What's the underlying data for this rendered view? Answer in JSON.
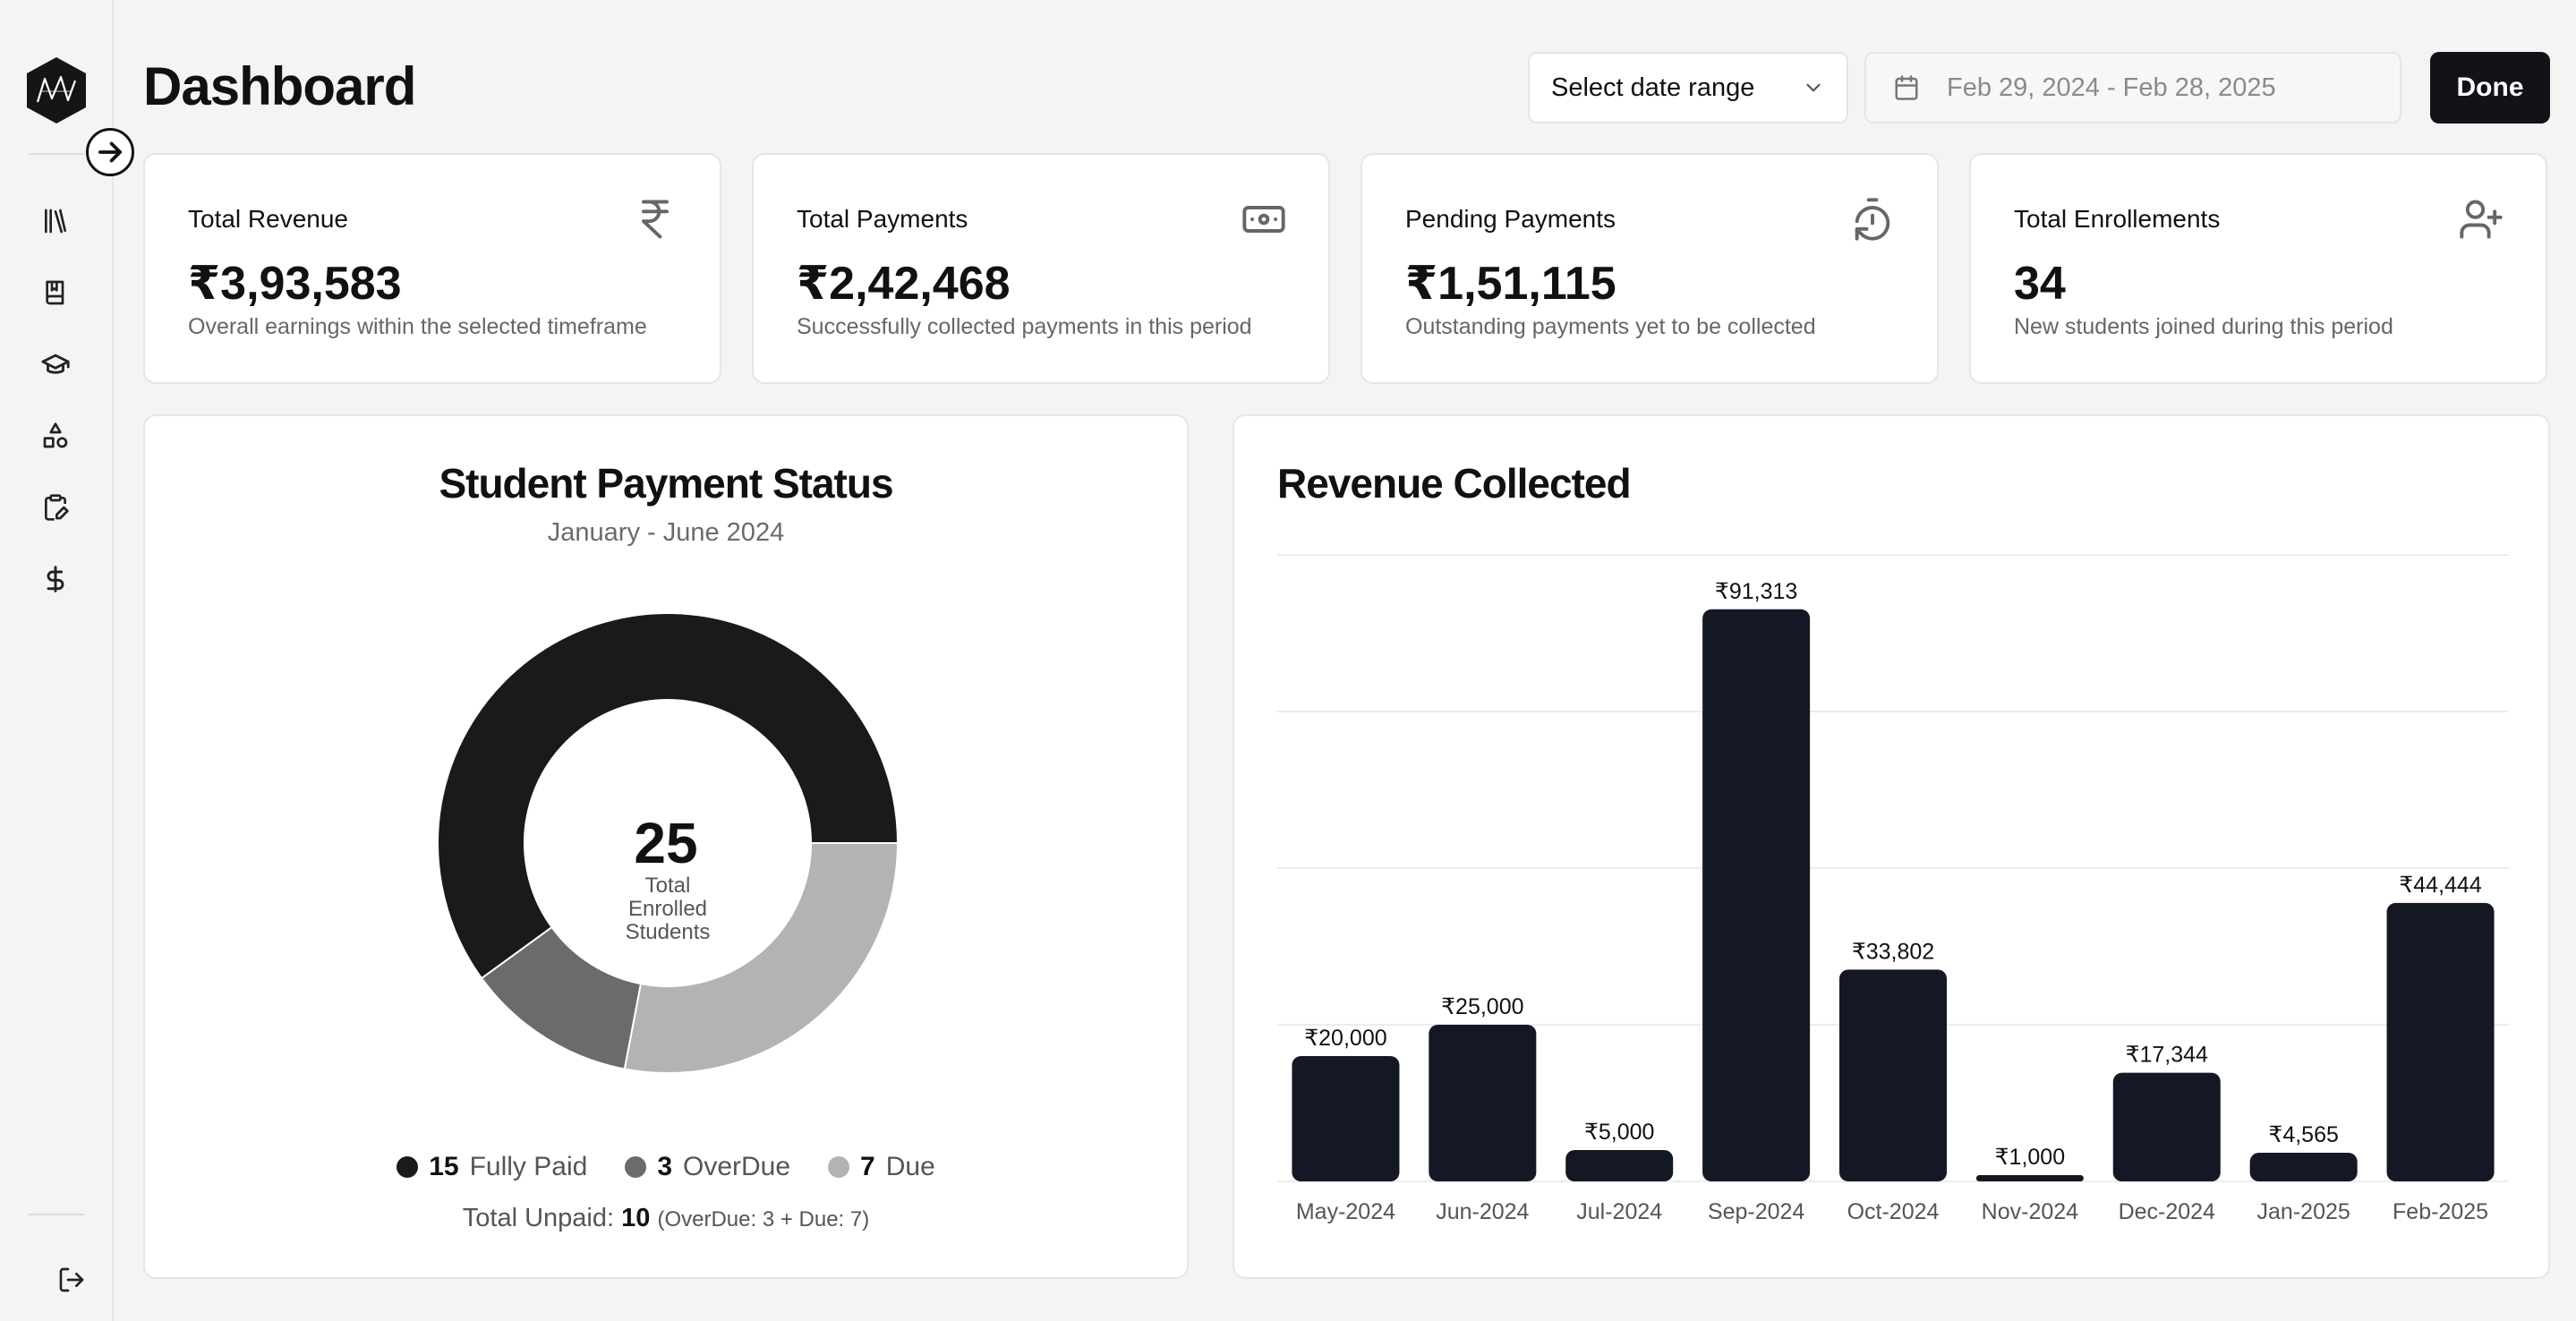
{
  "header": {
    "title": "Dashboard",
    "date_select": "Select date range",
    "date_range": "Feb 29, 2024 - Feb 28, 2025",
    "done": "Done"
  },
  "sidebar": {
    "icons": [
      "library-icon",
      "book-icon",
      "graduation-cap-icon",
      "shapes-icon",
      "clipboard-edit-icon",
      "dollar-icon"
    ],
    "logout_icon": "logout-icon"
  },
  "stats": [
    {
      "title": "Total Revenue",
      "value": "₹3,93,583",
      "sub": "Overall earnings within the selected timeframe",
      "icon": "rupee-icon"
    },
    {
      "title": "Total Payments",
      "value": "₹2,42,468",
      "sub": "Successfully collected payments in this period",
      "icon": "banknote-icon"
    },
    {
      "title": "Pending Payments",
      "value": "₹1,51,115",
      "sub": "Outstanding payments yet to be collected",
      "icon": "timer-reset-icon"
    },
    {
      "title": "Total Enrollements",
      "value": "34",
      "sub": "New students joined during this period",
      "icon": "user-plus-icon"
    }
  ],
  "payment_status": {
    "title": "Student Payment Status",
    "subtitle": "January - June 2024",
    "center_value": "25",
    "center_label": "Total Enrolled Students",
    "legend": [
      {
        "count": "15",
        "label": "Fully Paid",
        "color": "#1a1a1a"
      },
      {
        "count": "3",
        "label": "OverDue",
        "color": "#6b6b6b"
      },
      {
        "count": "7",
        "label": "Due",
        "color": "#b3b3b3"
      }
    ],
    "unpaid_prefix": "Total Unpaid:",
    "unpaid_value": "10",
    "unpaid_detail": "(OverDue: 3 + Due: 7)"
  },
  "chart_data": {
    "type": "bar",
    "title": "Revenue Collected",
    "categories": [
      "May-2024",
      "Jun-2024",
      "Jul-2024",
      "Sep-2024",
      "Oct-2024",
      "Nov-2024",
      "Dec-2024",
      "Jan-2025",
      "Feb-2025"
    ],
    "values": [
      20000,
      25000,
      5000,
      91313,
      33802,
      1000,
      17344,
      4565,
      44444
    ],
    "labels": [
      "₹20,000",
      "₹25,000",
      "₹5,000",
      "₹91,313",
      "₹33,802",
      "₹1,000",
      "₹17,344",
      "₹4,565",
      "₹44,444"
    ],
    "ylim": [
      0,
      100000
    ],
    "grid": true,
    "bar_color": "#141824"
  }
}
